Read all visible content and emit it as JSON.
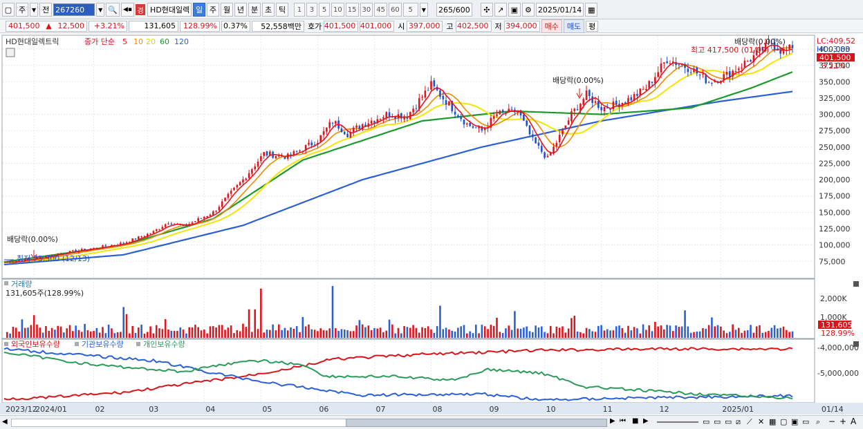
{
  "toolbar": {
    "period_main": "주",
    "prev_label": "전",
    "code": "267260",
    "gyeong_badge": "경",
    "stock_name": "HD현대일렉",
    "period_day": "일",
    "period_week": "주",
    "period_month": "월",
    "period_year": "년",
    "period_min": "분",
    "period_sec": "초",
    "period_tick": "틱",
    "intervals": [
      "1",
      "3",
      "5",
      "10",
      "15",
      "30",
      "45",
      "60"
    ],
    "count_value": "5",
    "bars_shown": "265",
    "bars_total": "/600",
    "date": "2025/01/14"
  },
  "quote": {
    "price": "401,500",
    "change_arrow": "▲",
    "change": "12,500",
    "change_pct": "+3.21%",
    "volume": "131,605",
    "volume_ratio": "128.99%",
    "turnover": "0.37%",
    "amount": "52,558백만",
    "ask_label": "호가",
    "ask1": "401,500",
    "ask2": "401,000",
    "open_label": "시",
    "open": "397,000",
    "high_label": "고",
    "high": "402,500",
    "low_label": "저",
    "low": "394,000",
    "buy_button": "매수",
    "sell_button": "매도",
    "eval_button": "평"
  },
  "chart_data": {
    "type": "candlestick",
    "price_panel": {
      "legend_name": "HD현대일렉트릭",
      "legend_ma_label": "종가 단순",
      "ma_periods": [
        "5",
        "10",
        "20",
        "60",
        "120"
      ],
      "ma_colors": [
        "#e8141c",
        "#f08c00",
        "#f5e500",
        "#1a9a2a",
        "#2a5fd8"
      ],
      "y_ticks": [
        "400,000",
        "375,000",
        "350,000",
        "325,000",
        "300,000",
        "275,000",
        "250,000",
        "225,000",
        "200,000",
        "175,000",
        "150,000",
        "125,000",
        "100,000",
        "75,000"
      ],
      "y_tick_values": [
        400000,
        375000,
        350000,
        325000,
        300000,
        275000,
        250000,
        225000,
        200000,
        175000,
        150000,
        125000,
        100000,
        75000
      ],
      "ylim": [
        52000,
        418000
      ],
      "lc_label": "LC:409,52",
      "hc_label": "HC:-3,83",
      "current_price_tag": "401,500",
      "current_pct_tag": "3.21%",
      "annotations": {
        "dividend_1": "배당락(0.00%)",
        "dividend_2": "배당락(0.00%)",
        "dividend_3": "배당락(0.00%)",
        "high_text": "최고 417,500 (01/09)",
        "low_text": "최저 73,300 (12/13)"
      },
      "close_points": [
        {
          "x": 0,
          "y": 73300
        },
        {
          "x": 10,
          "y": 79000
        },
        {
          "x": 20,
          "y": 88000
        },
        {
          "x": 30,
          "y": 95000
        },
        {
          "x": 40,
          "y": 103000
        },
        {
          "x": 50,
          "y": 120000
        },
        {
          "x": 55,
          "y": 135000
        },
        {
          "x": 60,
          "y": 128000
        },
        {
          "x": 70,
          "y": 150000
        },
        {
          "x": 75,
          "y": 175000
        },
        {
          "x": 80,
          "y": 200000
        },
        {
          "x": 87,
          "y": 240000
        },
        {
          "x": 95,
          "y": 235000
        },
        {
          "x": 105,
          "y": 260000
        },
        {
          "x": 110,
          "y": 290000
        },
        {
          "x": 115,
          "y": 270000
        },
        {
          "x": 120,
          "y": 285000
        },
        {
          "x": 128,
          "y": 300000
        },
        {
          "x": 135,
          "y": 298000
        },
        {
          "x": 143,
          "y": 345000
        },
        {
          "x": 146,
          "y": 330000
        },
        {
          "x": 150,
          "y": 310000
        },
        {
          "x": 155,
          "y": 285000
        },
        {
          "x": 160,
          "y": 275000
        },
        {
          "x": 165,
          "y": 300000
        },
        {
          "x": 172,
          "y": 305000
        },
        {
          "x": 177,
          "y": 260000
        },
        {
          "x": 182,
          "y": 232000
        },
        {
          "x": 190,
          "y": 300000
        },
        {
          "x": 195,
          "y": 330000
        },
        {
          "x": 200,
          "y": 310000
        },
        {
          "x": 205,
          "y": 315000
        },
        {
          "x": 210,
          "y": 325000
        },
        {
          "x": 215,
          "y": 340000
        },
        {
          "x": 222,
          "y": 385000
        },
        {
          "x": 230,
          "y": 370000
        },
        {
          "x": 236,
          "y": 350000
        },
        {
          "x": 242,
          "y": 360000
        },
        {
          "x": 250,
          "y": 385000
        },
        {
          "x": 257,
          "y": 410000
        },
        {
          "x": 261,
          "y": 395000
        },
        {
          "x": 264,
          "y": 401500
        }
      ],
      "ma120_points": [
        {
          "x": 0,
          "y": 70000
        },
        {
          "x": 40,
          "y": 85000
        },
        {
          "x": 80,
          "y": 130000
        },
        {
          "x": 120,
          "y": 200000
        },
        {
          "x": 160,
          "y": 250000
        },
        {
          "x": 200,
          "y": 290000
        },
        {
          "x": 240,
          "y": 320000
        },
        {
          "x": 264,
          "y": 335000
        }
      ],
      "ma60_points": [
        {
          "x": 0,
          "y": 74000
        },
        {
          "x": 40,
          "y": 100000
        },
        {
          "x": 70,
          "y": 140000
        },
        {
          "x": 100,
          "y": 230000
        },
        {
          "x": 140,
          "y": 290000
        },
        {
          "x": 170,
          "y": 305000
        },
        {
          "x": 200,
          "y": 300000
        },
        {
          "x": 230,
          "y": 310000
        },
        {
          "x": 250,
          "y": 340000
        },
        {
          "x": 264,
          "y": 365000
        }
      ]
    },
    "volume_panel": {
      "label": "거래량",
      "value_text": "131,605주(128.99%)",
      "y_ticks": [
        "2,000K",
        "1,000K"
      ],
      "current_tag": "131,605",
      "current_pct_tag": "128.99%"
    },
    "holdings_panel": {
      "legend": [
        "외국인보유수량",
        "기관보유수량",
        "개인보유수량"
      ],
      "legend_colors": [
        "#d8141a",
        "#2a5fd8",
        "#2a9a5a"
      ],
      "y_ticks": [
        "-4,000,000",
        "-5,000,000"
      ]
    },
    "x_axis": {
      "labels": [
        "2023/12",
        "2024/01",
        "02",
        "03",
        "04",
        "05",
        "06",
        "07",
        "08",
        "09",
        "10",
        "11",
        "12",
        "2025/01",
        "01/14"
      ],
      "label_x": [
        0,
        10,
        30,
        48,
        67,
        86,
        105,
        124,
        143,
        162,
        181,
        200,
        219,
        240,
        264
      ]
    }
  }
}
